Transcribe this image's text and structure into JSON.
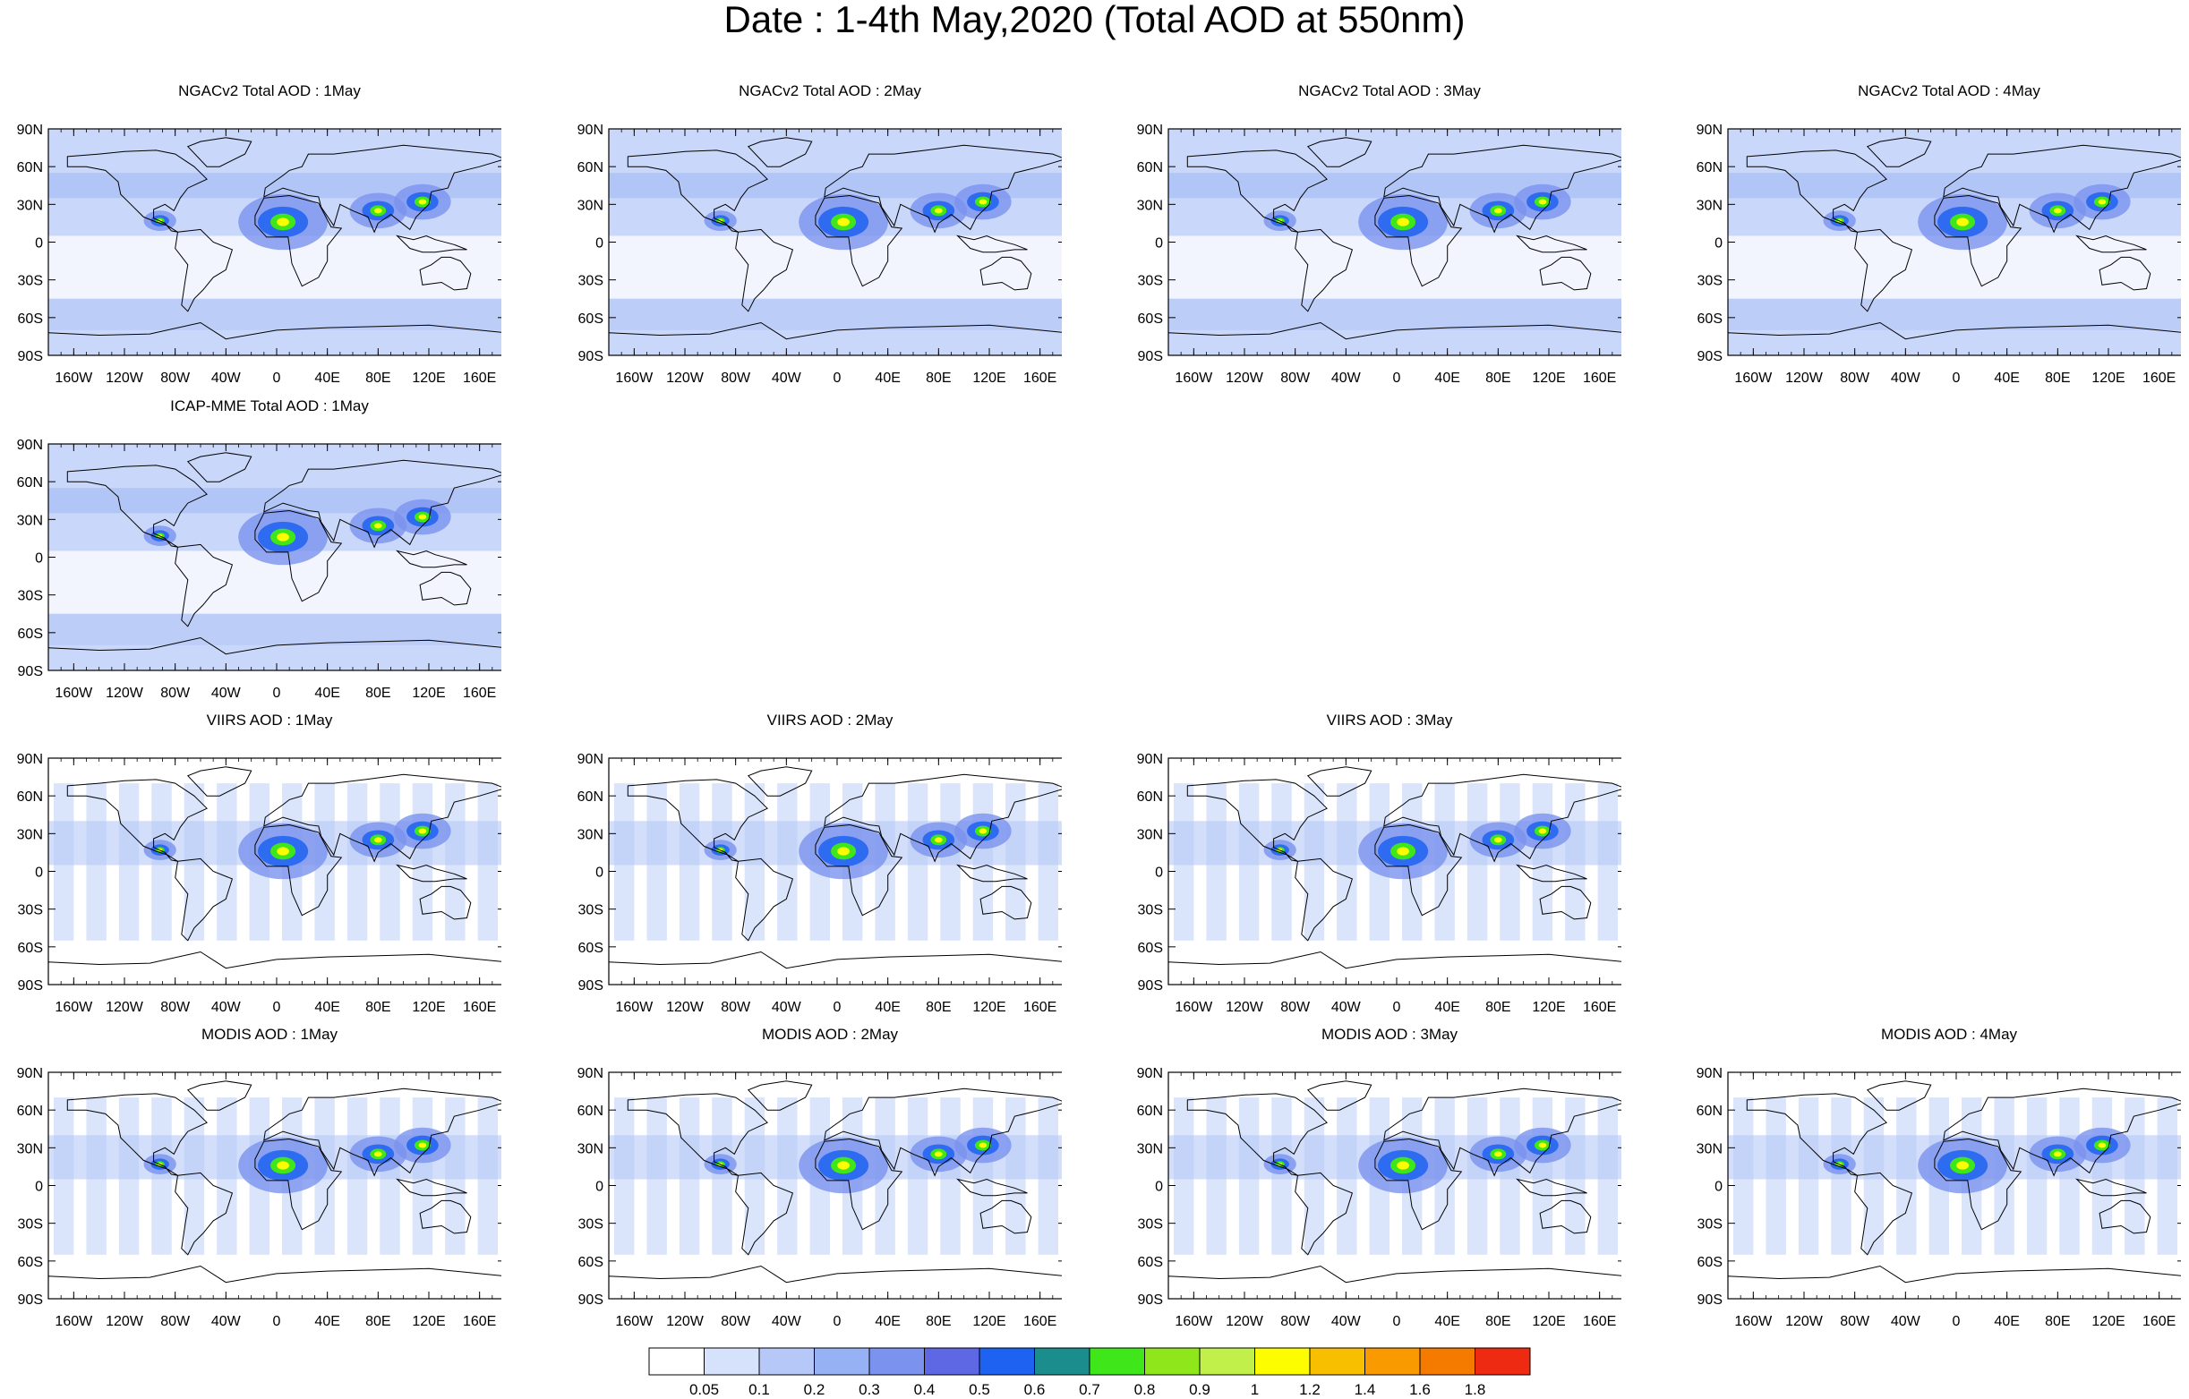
{
  "title": "Date : 1-4th May,2020 (Total AOD at 550nm)",
  "lat_labels": [
    "90N",
    "60N",
    "30N",
    "0",
    "30S",
    "60S",
    "90S"
  ],
  "lon_labels": [
    "160W",
    "120W",
    "80W",
    "40W",
    "0",
    "40E",
    "80E",
    "120E",
    "160E"
  ],
  "panels": [
    {
      "title": "NGACv2 Total AOD : 1May",
      "product": "model"
    },
    {
      "title": "NGACv2 Total AOD : 2May",
      "product": "model"
    },
    {
      "title": "NGACv2 Total AOD : 3May",
      "product": "model"
    },
    {
      "title": "NGACv2 Total AOD : 4May",
      "product": "model"
    },
    {
      "title": "ICAP-MME Total AOD : 1May",
      "product": "model"
    },
    {
      "title": "VIIRS AOD : 1May",
      "product": "satellite"
    },
    {
      "title": "VIIRS AOD : 2May",
      "product": "satellite"
    },
    {
      "title": "VIIRS AOD : 3May",
      "product": "satellite"
    },
    {
      "title": "MODIS AOD : 1May",
      "product": "satellite"
    },
    {
      "title": "MODIS AOD : 2May",
      "product": "satellite"
    },
    {
      "title": "MODIS AOD : 3May",
      "product": "satellite"
    },
    {
      "title": "MODIS AOD : 4May",
      "product": "satellite"
    }
  ],
  "colorbar": {
    "labels": [
      "0.05",
      "0.1",
      "0.2",
      "0.3",
      "0.4",
      "0.5",
      "0.6",
      "0.7",
      "0.8",
      "0.9",
      "1",
      "1.2",
      "1.4",
      "1.6",
      "1.8"
    ],
    "colors": [
      "#ffffff",
      "#d6e2fb",
      "#b6c8f8",
      "#97b1f5",
      "#7b92ef",
      "#5f68e4",
      "#1d62f0",
      "#1a8d8c",
      "#3fe61a",
      "#8fe61a",
      "#c1f04a",
      "#fdfd00",
      "#f8be00",
      "#f89a00",
      "#f57a00",
      "#ef2a12"
    ]
  }
}
